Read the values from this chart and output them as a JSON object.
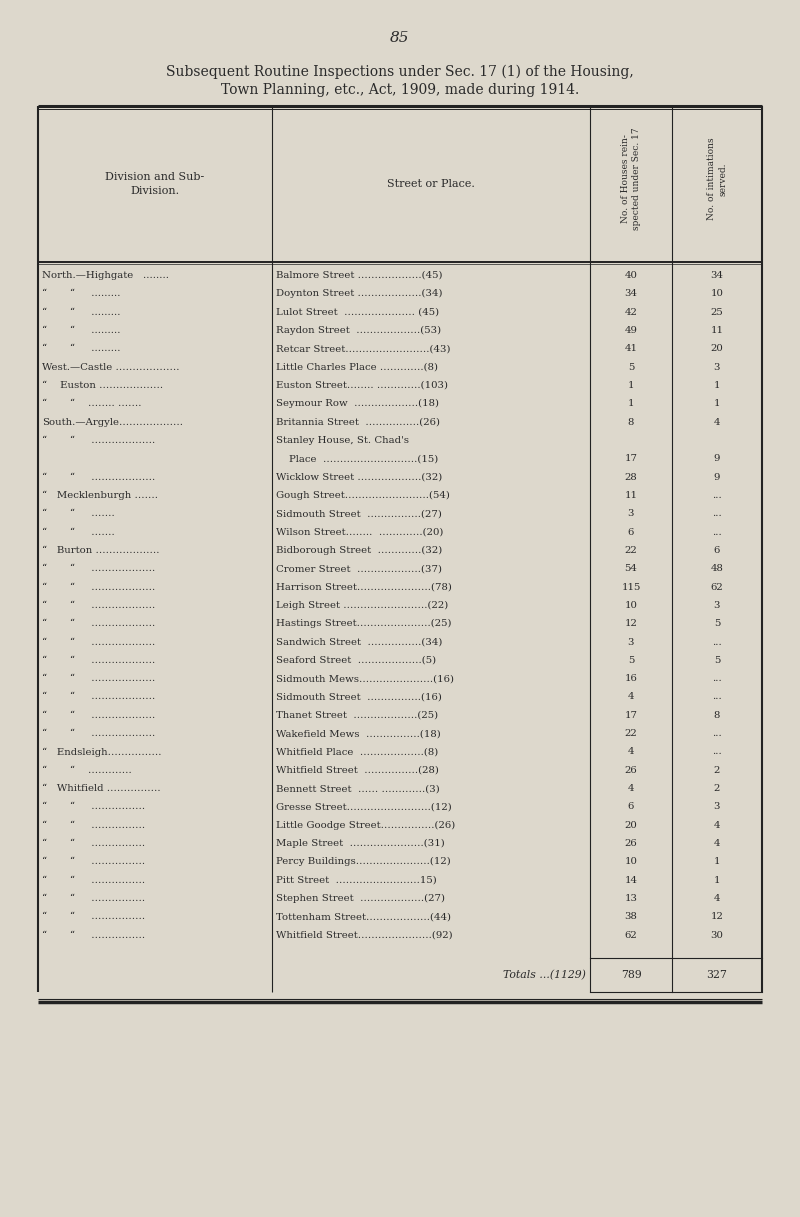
{
  "page_number": "85",
  "title_line1": "Subsequent Routine Inspections under Sec. 17 (1) of the Housing,",
  "title_line2": "Town Planning, etc., Act, 1909, made during 1914.",
  "bg_color": "#ddd8cc",
  "text_color": "#2a2a2a",
  "line_color": "#222222",
  "rows": [
    [
      "North.—Highgate   ........",
      "Balmore Street ……………….(45)",
      "40",
      "34"
    ],
    [
      "“       “     .........",
      "Doynton Street ……………….(34)",
      "34",
      "10"
    ],
    [
      "“       “     .........",
      "Lulot Street  ………………… (45)",
      "42",
      "25"
    ],
    [
      "“       “     .........",
      "Raydon Street  ……………….(53)",
      "49",
      "11"
    ],
    [
      "“       “     .........",
      "Retcar Street…………………….(43)",
      "41",
      "20"
    ],
    [
      "West.—Castle ……………….",
      "Little Charles Place ………….(8)",
      "5",
      "3"
    ],
    [
      "“    Euston ……………….",
      "Euston Street…….. ………….(103)",
      "1",
      "1"
    ],
    [
      "“       “    …….. …….",
      "Seymour Row  ……………….(18)",
      "1",
      "1"
    ],
    [
      "South.—Argyle……………….",
      "Britannia Street  …………….(26)",
      "8",
      "4"
    ],
    [
      "“       “     ……………….",
      "Stanley House, St. Chad's",
      "",
      ""
    ],
    [
      "",
      "    Place  ……………………….(15)",
      "17",
      "9"
    ],
    [
      "“       “     ……………….",
      "Wicklow Street ……………….(32)",
      "28",
      "9"
    ],
    [
      "“   Mecklenburgh …….",
      "Gough Street…………………….(54)",
      "11",
      "..."
    ],
    [
      "“       “     …….",
      "Sidmouth Street  …………….(27)",
      "3",
      "..."
    ],
    [
      "“       “     …….",
      "Wilson Street……..  ………….(20)",
      "6",
      "..."
    ],
    [
      "“   Burton ……………….",
      "Bidborough Street  ………….(32)",
      "22",
      "6"
    ],
    [
      "“       “     ……………….",
      "Cromer Street  ……………….(37)",
      "54",
      "48"
    ],
    [
      "“       “     ……………….",
      "Harrison Street………………….(78)",
      "115",
      "62"
    ],
    [
      "“       “     ……………….",
      "Leigh Street …………………….(22)",
      "10",
      "3"
    ],
    [
      "“       “     ……………….",
      "Hastings Street………………….(25)",
      "12",
      "5"
    ],
    [
      "“       “     ……………….",
      "Sandwich Street  …………….(34)",
      "3",
      "..."
    ],
    [
      "“       “     ……………….",
      "Seaford Street  ……………….(5)",
      "5",
      "5"
    ],
    [
      "“       “     ……………….",
      "Sidmouth Mews………………….(16)",
      "16",
      "..."
    ],
    [
      "“       “     ……………….",
      "Sidmouth Street  …………….(16)",
      "4",
      "..."
    ],
    [
      "“       “     ……………….",
      "Thanet Street  ……………….(25)",
      "17",
      "8"
    ],
    [
      "“       “     ……………….",
      "Wakefield Mews  …………….(18)",
      "22",
      "..."
    ],
    [
      "“   Endsleigh…………….",
      "Whitfield Place  ……………….(8)",
      "4",
      "..."
    ],
    [
      "“       “    ………….",
      "Whitfield Street  …………….(28)",
      "26",
      "2"
    ],
    [
      "“   Whitfield …………….",
      "Bennett Street  …… ………….(3)",
      "4",
      "2"
    ],
    [
      "“       “     …………….",
      "Gresse Street…………………….(12)",
      "6",
      "3"
    ],
    [
      "“       “     …………….",
      "Little Goodge Street…………….(26)",
      "20",
      "4"
    ],
    [
      "“       “     …………….",
      "Maple Street  ………………….(31)",
      "26",
      "4"
    ],
    [
      "“       “     …………….",
      "Percy Buildings………………….(12)",
      "10",
      "1"
    ],
    [
      "“       “     …………….",
      "Pitt Street  …………………….15)",
      "14",
      "1"
    ],
    [
      "“       “     …………….",
      "Stephen Street  ……………….(27)",
      "13",
      "4"
    ],
    [
      "“       “     …………….",
      "Tottenham Street……………….(44)",
      "38",
      "12"
    ],
    [
      "“       “     …………….",
      "Whitfield Street………………….(92)",
      "62",
      "30"
    ]
  ],
  "totals_label": "Totals ...(1129)",
  "totals_col3": "789",
  "totals_col4": "327"
}
